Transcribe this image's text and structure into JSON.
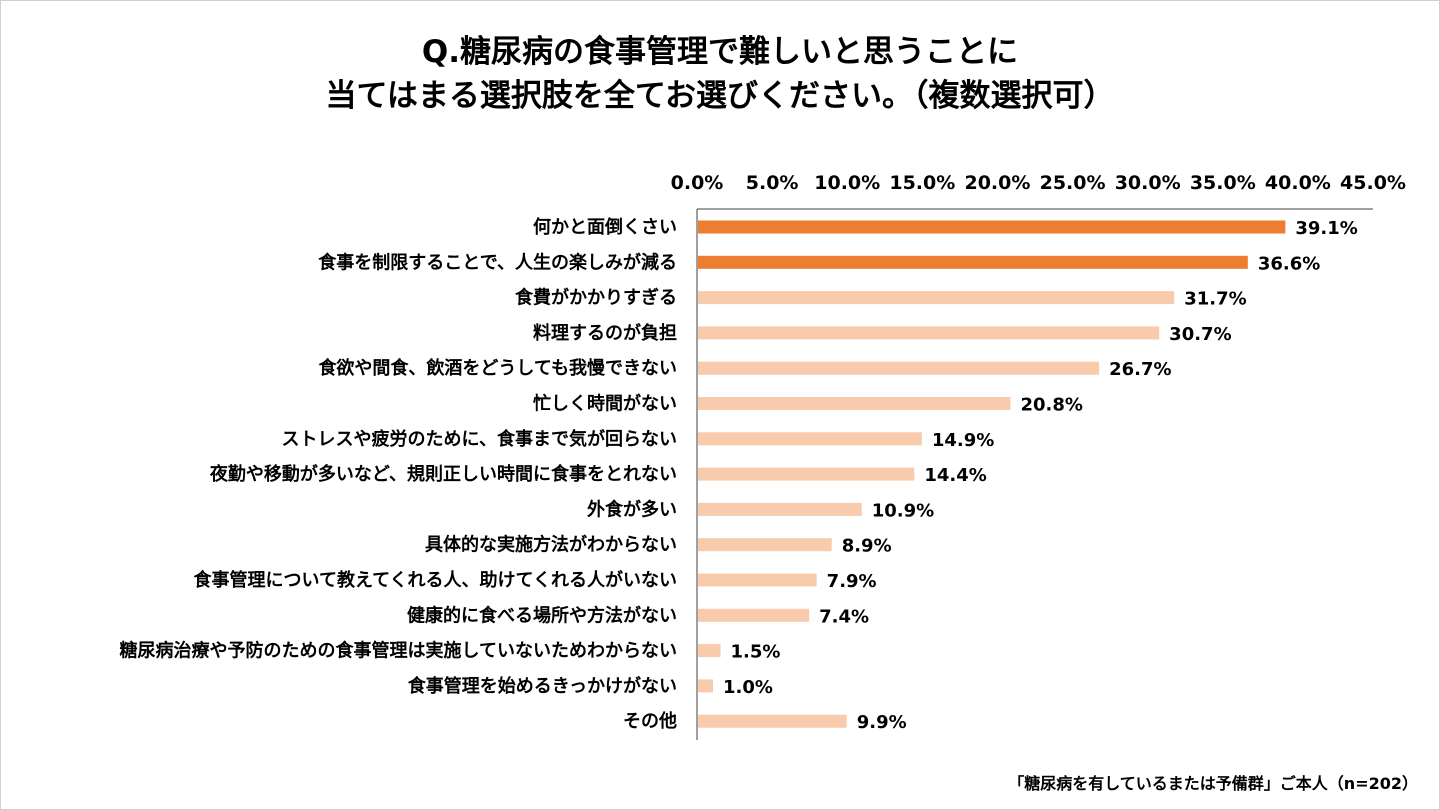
{
  "title": {
    "line1": "Q.糖尿病の食事管理で難しいと思うことに",
    "line2": "当てはまる選択肢を全てお選びください。（複数選択可）"
  },
  "footnote": "「糖尿病を有しているまたは予備群」ご本人（n=202）",
  "colors": {
    "highlight": "#ED7D31",
    "normal": "#F8CBAD"
  },
  "chart_data": {
    "type": "bar",
    "orientation": "horizontal",
    "title": "Q.糖尿病の食事管理で難しいと思うことに当てはまる選択肢を全てお選びください。（複数選択可）",
    "xlabel": "",
    "ylabel": "",
    "xlim": [
      0,
      45
    ],
    "ticks": [
      "0.0%",
      "5.0%",
      "10.0%",
      "15.0%",
      "20.0%",
      "25.0%",
      "30.0%",
      "35.0%",
      "40.0%",
      "45.0%"
    ],
    "tick_values": [
      0,
      5,
      10,
      15,
      20,
      25,
      30,
      35,
      40,
      45
    ],
    "categories": [
      "何かと面倒くさい",
      "食事を制限することで、人生の楽しみが減る",
      "食費がかかりすぎる",
      "料理するのが負担",
      "食欲や間食、飲酒をどうしても我慢できない",
      "忙しく時間がない",
      "ストレスや疲労のために、食事まで気が回らない",
      "夜勤や移動が多いなど、規則正しい時間に食事をとれない",
      "外食が多い",
      "具体的な実施方法がわからない",
      "食事管理について教えてくれる人、助けてくれる人がいない",
      "健康的に食べる場所や方法がない",
      "糖尿病治療や予防のための食事管理は実施していないためわからない",
      "食事管理を始めるきっかけがない",
      "その他"
    ],
    "values": [
      39.1,
      36.6,
      31.7,
      30.7,
      26.7,
      20.8,
      14.9,
      14.4,
      10.9,
      8.9,
      7.9,
      7.4,
      1.5,
      1.0,
      9.9
    ],
    "value_labels": [
      "39.1%",
      "36.6%",
      "31.7%",
      "30.7%",
      "26.7%",
      "20.8%",
      "14.9%",
      "14.4%",
      "10.9%",
      "8.9%",
      "7.9%",
      "7.4%",
      "1.5%",
      "1.0%",
      "9.9%"
    ],
    "highlighted": [
      true,
      true,
      false,
      false,
      false,
      false,
      false,
      false,
      false,
      false,
      false,
      false,
      false,
      false,
      false
    ]
  }
}
